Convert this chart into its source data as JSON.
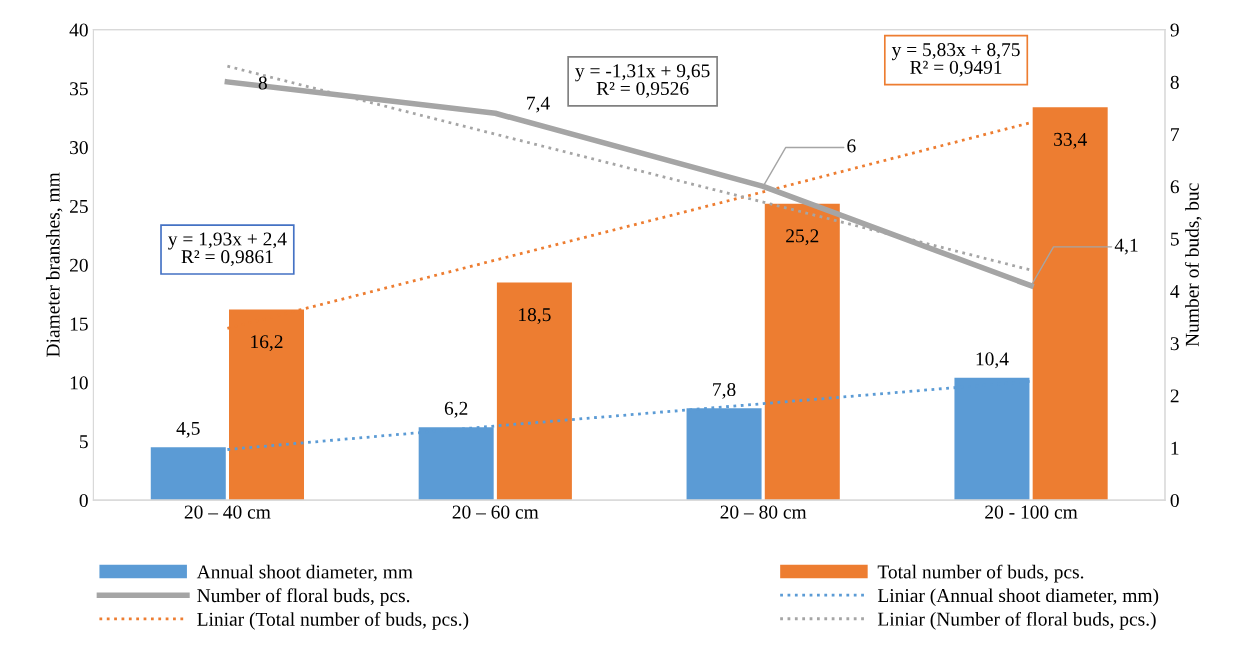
{
  "chart_data": {
    "type": "bar",
    "categories": [
      "20 – 40 cm",
      "20 – 60 cm",
      "20 – 80 cm",
      "20 - 100 cm"
    ],
    "ylabel": "Diameter branshes, mm",
    "y2label": "Number of buds, buc",
    "ylim": [
      0,
      40
    ],
    "yticks": [
      0,
      5,
      10,
      15,
      20,
      25,
      30,
      35,
      40
    ],
    "y2lim": [
      0,
      9
    ],
    "y2ticks": [
      0,
      1,
      2,
      3,
      4,
      5,
      6,
      7,
      8,
      9
    ],
    "grid": false,
    "legend": "bottom",
    "marker": "none",
    "data_labels": true,
    "series": [
      {
        "name": "Annual shoot diameter, mm",
        "color": "#5b9bd5",
        "values": [
          4.5,
          6.2,
          7.8,
          10.4
        ],
        "value_labels": [
          "4,5",
          "6,2",
          "7,8",
          "10,4"
        ]
      },
      {
        "name": "Total number of buds, pcs.",
        "color": "#ed7d31",
        "values": [
          16.2,
          18.5,
          25.2,
          33.4
        ],
        "value_labels": [
          "16,2",
          "18,5",
          "25,2",
          "33,4"
        ]
      },
      {
        "name": "Number of floral buds, pcs.",
        "type": "line",
        "axis": "y2",
        "color": "#a5a5a5",
        "line_style": "solid",
        "values": [
          8,
          7.4,
          6,
          4.1
        ],
        "value_labels": [
          "8",
          "7,4",
          "6",
          "4,1"
        ]
      },
      {
        "name": "Liniar (Annual shoot diameter, mm)",
        "type": "line",
        "color": "#5b9bd5",
        "line_style": "dotted",
        "values": [
          4.3,
          6.3,
          8.2,
          10.1
        ],
        "value_labels": [
          null,
          null,
          null,
          null
        ]
      },
      {
        "name": "Liniar (Total number of buds, pcs.)",
        "type": "line",
        "color": "#ed7d31",
        "line_style": "dotted",
        "values": [
          14.6,
          20.4,
          26.2,
          32.1
        ],
        "value_labels": [
          null,
          null,
          null,
          null
        ]
      },
      {
        "name": "Liniar (Number of floral buds, pcs.)",
        "type": "line",
        "axis": "y2",
        "color": "#a5a5a5",
        "line_style": "dotted",
        "values": [
          8.3,
          7.0,
          5.7,
          4.4
        ],
        "value_labels": [
          null,
          null,
          null,
          null
        ]
      }
    ],
    "annotations": [
      "y = 1,93x + 2,4\nR² = 0,9861",
      "y = -1,31x + 9,65\nR² = 0,9526",
      "y = 5,83x + 8,75\nR² = 0,9491"
    ]
  }
}
